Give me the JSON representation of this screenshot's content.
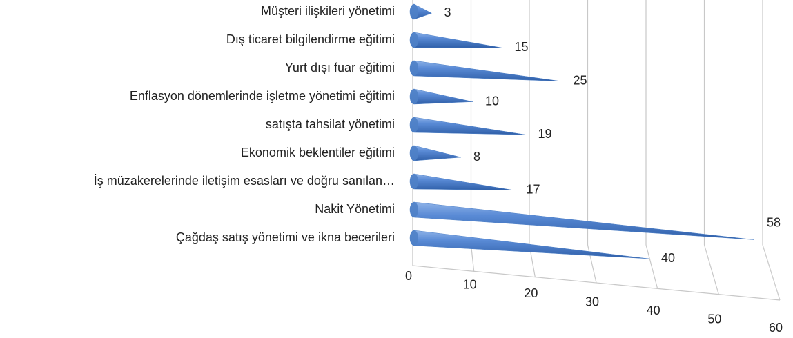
{
  "chart_data": {
    "type": "cone-bar",
    "categories": [
      "Müşteri ilişkileri yönetimi",
      "Dış ticaret bilgilendirme eğitimi",
      "Yurt dışı fuar eğitimi",
      "Enflasyon dönemlerinde işletme yönetimi eğitimi",
      "satışta tahsilat yönetimi",
      "Ekonomik beklentiler eğitimi",
      "İş müzakerelerinde iletişim esasları ve doğru sanılan…",
      "Nakit Yönetimi",
      "Çağdaş satış yönetimi ve ikna becerileri"
    ],
    "values": [
      3,
      15,
      25,
      10,
      19,
      8,
      17,
      58,
      40
    ],
    "color": "#4f81c7",
    "xlim": [
      0,
      60
    ],
    "xticks": [
      0,
      10,
      20,
      30,
      40,
      50,
      60
    ],
    "grid": true
  }
}
